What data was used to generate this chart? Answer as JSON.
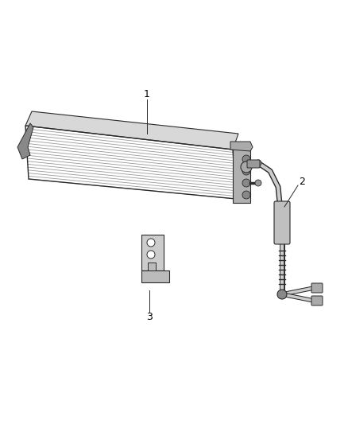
{
  "background_color": "#ffffff",
  "fig_width": 4.38,
  "fig_height": 5.33,
  "dpi": 100,
  "line_color": "#2a2a2a",
  "cooler": {
    "num_fins": 18,
    "fin_color": "#aaaaaa",
    "face_color": "#e0e0e0",
    "top_color": "#cccccc",
    "edge_color": "#2a2a2a"
  }
}
